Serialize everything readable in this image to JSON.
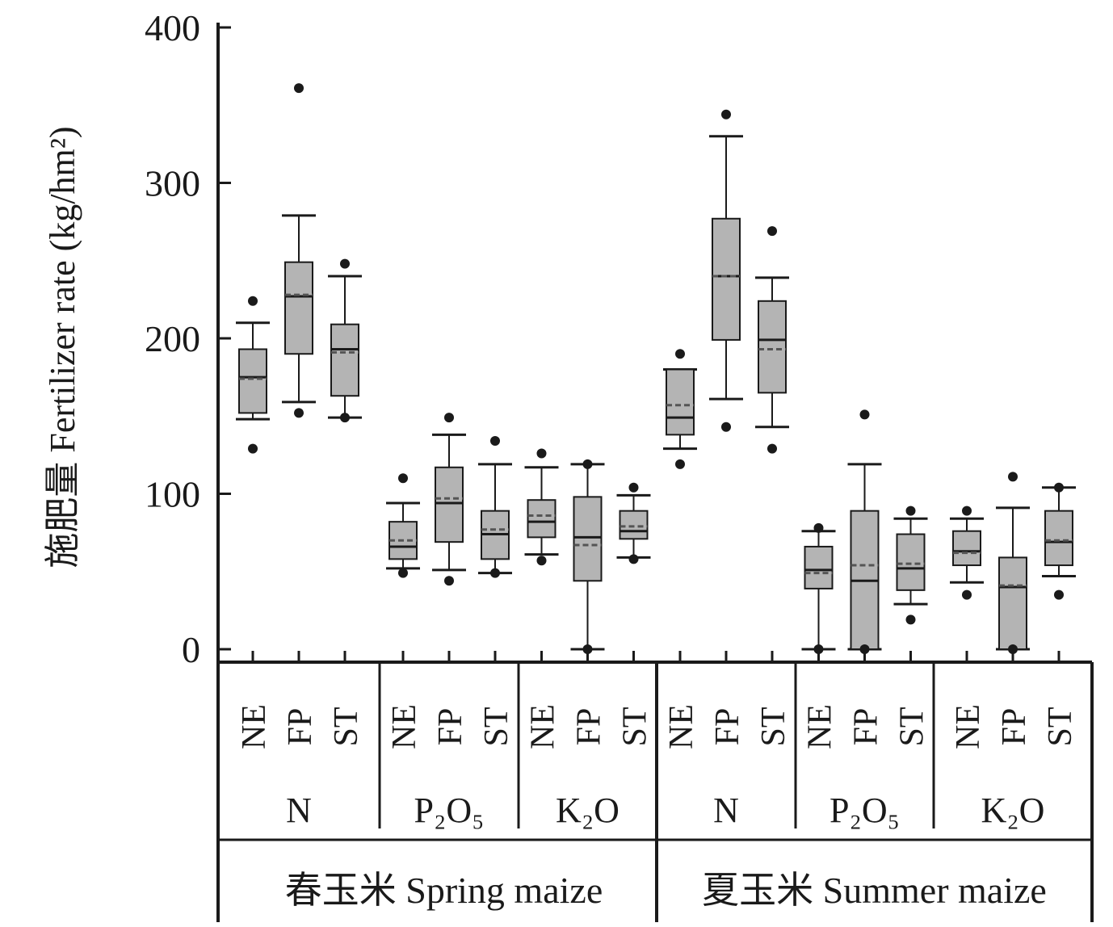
{
  "chart_data": {
    "type": "box",
    "ylabel": "施肥量 Fertilizer rate (kg/hm²)",
    "ylim": [
      0,
      400
    ],
    "yticks": [
      0,
      100,
      200,
      300,
      400
    ],
    "grid": false,
    "colors": {
      "box": "#b4b4b4",
      "stroke": "#1a1a1a",
      "mean_line": "#555555"
    },
    "groups": [
      {
        "season": "春玉米 Spring maize",
        "nutrients": [
          {
            "label": "N",
            "boxes": [
              {
                "method": "NE",
                "min": 148,
                "q1": 152,
                "median": 175,
                "mean": 174,
                "q3": 193,
                "max": 210,
                "outliers": [
                  224,
                  129
                ]
              },
              {
                "method": "FP",
                "min": 159,
                "q1": 190,
                "median": 227,
                "mean": 228,
                "q3": 249,
                "max": 279,
                "outliers": [
                  361,
                  152
                ]
              },
              {
                "method": "ST",
                "min": 149,
                "q1": 163,
                "median": 193,
                "mean": 191,
                "q3": 209,
                "max": 240,
                "outliers": [
                  248,
                  149
                ]
              }
            ]
          },
          {
            "label": "P₂O₅",
            "boxes": [
              {
                "method": "NE",
                "min": 52,
                "q1": 58,
                "median": 66,
                "mean": 70,
                "q3": 82,
                "max": 94,
                "outliers": [
                  110,
                  49
                ]
              },
              {
                "method": "FP",
                "min": 51,
                "q1": 69,
                "median": 94,
                "mean": 97,
                "q3": 117,
                "max": 138,
                "outliers": [
                  149,
                  44
                ]
              },
              {
                "method": "ST",
                "min": 49,
                "q1": 58,
                "median": 74,
                "mean": 77,
                "q3": 89,
                "max": 119,
                "outliers": [
                  134,
                  49
                ]
              }
            ]
          },
          {
            "label": "K₂O",
            "boxes": [
              {
                "method": "NE",
                "min": 61,
                "q1": 72,
                "median": 82,
                "mean": 86,
                "q3": 96,
                "max": 117,
                "outliers": [
                  126,
                  57
                ]
              },
              {
                "method": "FP",
                "min": 0,
                "q1": 44,
                "median": 72,
                "mean": 67,
                "q3": 98,
                "max": 119,
                "outliers": [
                  119,
                  0
                ]
              },
              {
                "method": "ST",
                "min": 59,
                "q1": 71,
                "median": 76,
                "mean": 79,
                "q3": 89,
                "max": 99,
                "outliers": [
                  104,
                  58
                ]
              }
            ]
          }
        ]
      },
      {
        "season": "夏玉米 Summer maize",
        "nutrients": [
          {
            "label": "N",
            "boxes": [
              {
                "method": "NE",
                "min": 129,
                "q1": 138,
                "median": 149,
                "mean": 157,
                "q3": 180,
                "max": 180,
                "outliers": [
                  190,
                  119
                ]
              },
              {
                "method": "FP",
                "min": 161,
                "q1": 199,
                "median": 240,
                "mean": 240,
                "q3": 277,
                "max": 330,
                "outliers": [
                  344,
                  143
                ]
              },
              {
                "method": "ST",
                "min": 143,
                "q1": 165,
                "median": 199,
                "mean": 193,
                "q3": 224,
                "max": 239,
                "outliers": [
                  269,
                  129
                ]
              }
            ]
          },
          {
            "label": "P₂O₅",
            "boxes": [
              {
                "method": "NE",
                "min": 0,
                "q1": 39,
                "median": 51,
                "mean": 49,
                "q3": 66,
                "max": 76,
                "outliers": [
                  78,
                  0
                ]
              },
              {
                "method": "FP",
                "min": 0,
                "q1": 0,
                "median": 44,
                "mean": 54,
                "q3": 89,
                "max": 119,
                "outliers": [
                  151,
                  0
                ]
              },
              {
                "method": "ST",
                "min": 29,
                "q1": 38,
                "median": 52,
                "mean": 55,
                "q3": 74,
                "max": 84,
                "outliers": [
                  89,
                  19
                ]
              }
            ]
          },
          {
            "label": "K₂O",
            "boxes": [
              {
                "method": "NE",
                "min": 43,
                "q1": 54,
                "median": 63,
                "mean": 62,
                "q3": 76,
                "max": 84,
                "outliers": [
                  89,
                  35
                ]
              },
              {
                "method": "FP",
                "min": 0,
                "q1": 0,
                "median": 40,
                "mean": 41,
                "q3": 59,
                "max": 91,
                "outliers": [
                  111,
                  0
                ]
              },
              {
                "method": "ST",
                "min": 47,
                "q1": 54,
                "median": 69,
                "mean": 70,
                "q3": 89,
                "max": 104,
                "outliers": [
                  104,
                  35
                ]
              }
            ]
          }
        ]
      }
    ]
  }
}
